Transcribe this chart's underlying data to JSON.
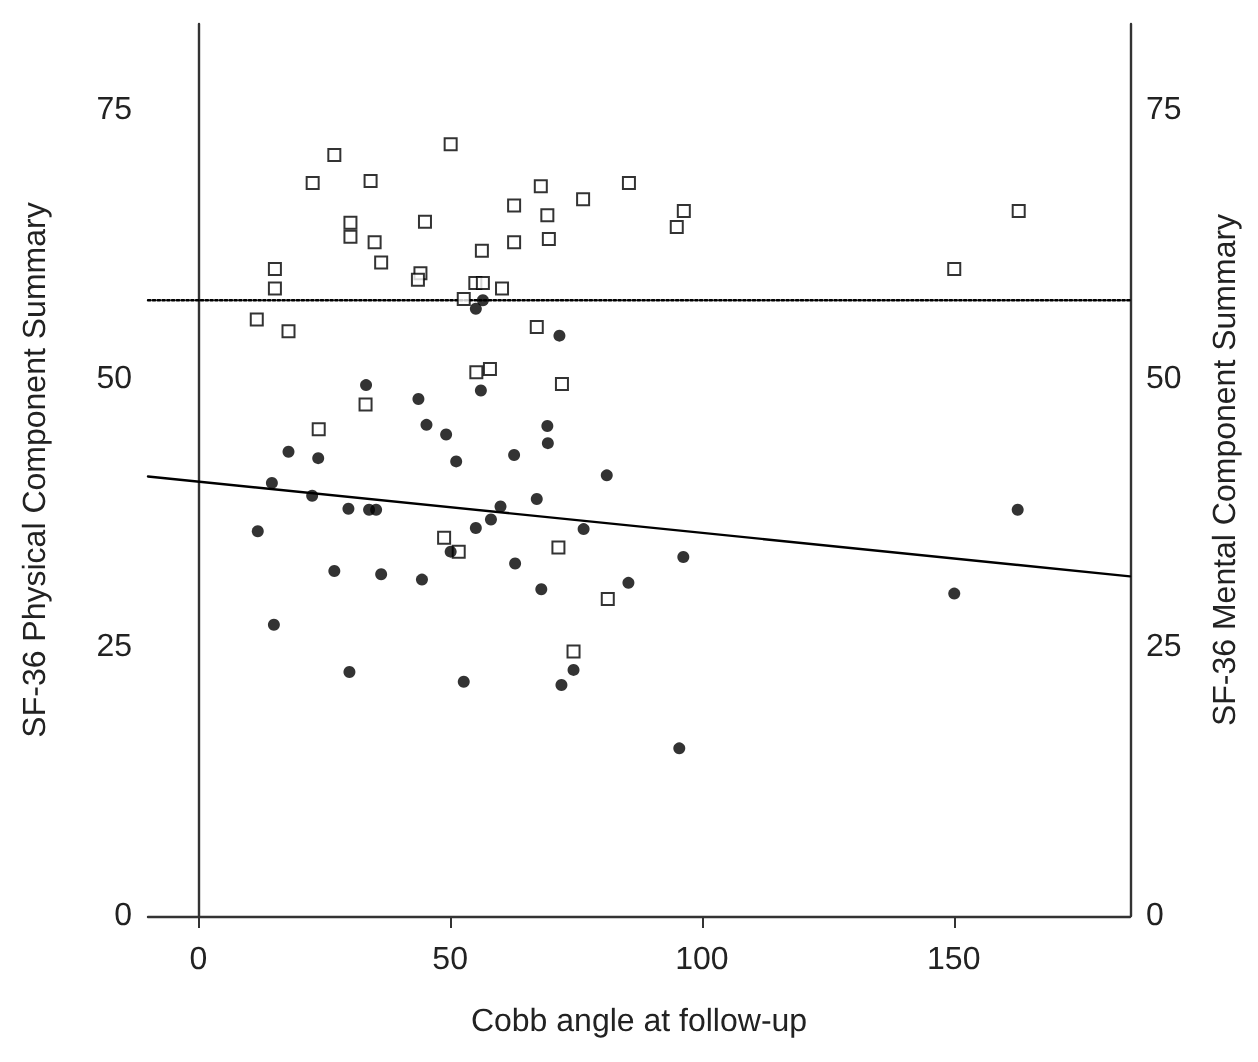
{
  "chart_data": {
    "type": "scatter",
    "xlabel": "Cobb angle at follow-up",
    "ylabel": "SF-36 Physical Component Summary",
    "y2label": "SF-36 Mental Component Summary",
    "xlim": [
      -10,
      185
    ],
    "xticks": [
      0,
      50,
      100,
      150
    ],
    "ylim": [
      0,
      83
    ],
    "yticks": [
      0,
      25,
      50,
      75
    ],
    "y2lim": [
      0,
      83
    ],
    "y2ticks": [
      0,
      25,
      50,
      75
    ],
    "grid": false,
    "series": [
      {
        "type": "scatter",
        "marker": "square",
        "color": "#000000",
        "x": [
          27.0,
          50.1,
          22.7,
          34.2,
          68.0,
          85.5,
          76.4,
          62.7,
          69.3,
          30.2,
          45.0,
          30.2,
          35.0,
          62.7,
          69.6,
          56.3,
          36.3,
          15.2,
          44.1,
          43.6,
          15.2,
          55.0,
          56.5,
          60.3,
          52.7,
          11.6,
          17.9,
          67.2,
          55.2,
          57.9,
          72.2,
          33.2,
          23.9,
          95.0,
          96.4,
          150.1,
          162.9,
          48.8,
          51.7,
          71.5,
          81.3,
          74.5
        ],
        "values": [
          70.8,
          71.8,
          68.2,
          68.4,
          67.9,
          68.2,
          66.7,
          66.1,
          65.2,
          64.5,
          64.6,
          63.2,
          62.7,
          62.7,
          63.0,
          61.9,
          60.8,
          60.2,
          59.8,
          59.2,
          58.4,
          58.9,
          58.9,
          58.4,
          57.4,
          55.5,
          54.4,
          54.8,
          50.6,
          50.9,
          49.5,
          47.6,
          45.3,
          64.1,
          65.6,
          60.2,
          65.6,
          35.2,
          33.9,
          34.3,
          29.5,
          24.6
        ]
      },
      {
        "type": "scatter",
        "marker": "circle",
        "color": "#000000",
        "x": [
          55.1,
          56.5,
          71.7,
          33.3,
          43.7,
          56.1,
          45.3,
          49.2,
          69.3,
          69.4,
          17.9,
          23.8,
          51.2,
          62.7,
          81.1,
          14.6,
          22.6,
          67.2,
          29.8,
          33.9,
          35.3,
          60.0,
          58.1,
          55.1,
          76.5,
          11.8,
          50.1,
          27.0,
          36.3,
          62.9,
          44.4,
          68.1,
          85.4,
          15.0,
          30.0,
          52.7,
          72.1,
          74.5,
          95.5,
          96.3,
          150.1,
          162.7
        ],
        "values": [
          56.5,
          57.3,
          54.0,
          49.4,
          48.1,
          48.9,
          45.7,
          44.8,
          45.6,
          44.0,
          43.2,
          42.6,
          42.3,
          42.9,
          41.0,
          40.3,
          39.1,
          38.8,
          37.9,
          37.8,
          37.8,
          38.1,
          36.9,
          36.1,
          36.0,
          35.8,
          33.9,
          32.1,
          31.8,
          32.8,
          31.3,
          30.4,
          31.0,
          27.1,
          22.7,
          21.8,
          21.5,
          22.9,
          15.6,
          33.4,
          30.0,
          37.8
        ]
      },
      {
        "type": "line",
        "marker": "none",
        "line_style": "solid",
        "color": "#000000",
        "x": [
          -10,
          185
        ],
        "values": [
          40.9,
          31.6
        ]
      },
      {
        "type": "line",
        "marker": "none",
        "line_style": "dotted",
        "color": "#000000",
        "x": [
          -10,
          185
        ],
        "values": [
          57.3,
          57.3
        ]
      }
    ]
  }
}
